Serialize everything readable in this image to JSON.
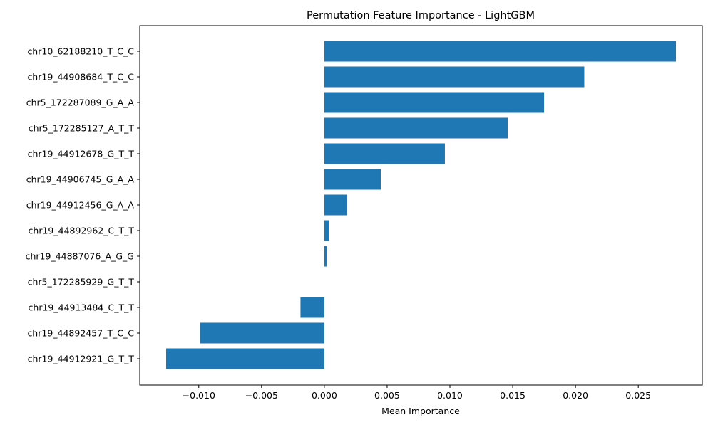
{
  "chart_data": {
    "type": "bar",
    "orientation": "horizontal",
    "title": "Permutation Feature Importance - LightGBM",
    "xlabel": "Mean Importance",
    "ylabel": "",
    "color": "#1f77b4",
    "xlim": [
      -0.0147,
      0.0301
    ],
    "xticks": [
      -0.01,
      -0.005,
      0.0,
      0.005,
      0.01,
      0.015,
      0.02,
      0.025
    ],
    "xtick_labels": [
      "−0.010",
      "−0.005",
      "0.000",
      "0.005",
      "0.010",
      "0.015",
      "0.020",
      "0.025"
    ],
    "grid": false,
    "categories": [
      "chr10_62188210_T_C_C",
      "chr19_44908684_T_C_C",
      "chr5_172287089_G_A_A",
      "chr5_172285127_A_T_T",
      "chr19_44912678_G_T_T",
      "chr19_44906745_G_A_A",
      "chr19_44912456_G_A_A",
      "chr19_44892962_C_T_T",
      "chr19_44887076_A_G_G",
      "chr5_172285929_G_T_T",
      "chr19_44913484_C_T_T",
      "chr19_44892457_T_C_C",
      "chr19_44912921_G_T_T"
    ],
    "values": [
      0.028,
      0.0207,
      0.0175,
      0.0146,
      0.0096,
      0.0045,
      0.0018,
      0.0004,
      0.0002,
      0.0,
      -0.0019,
      -0.0099,
      -0.0126
    ]
  }
}
